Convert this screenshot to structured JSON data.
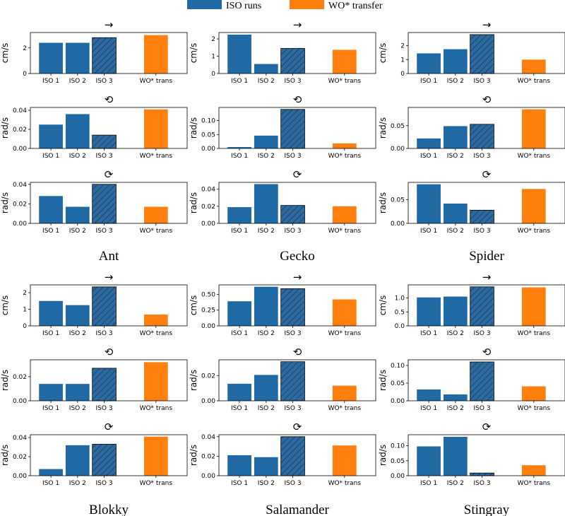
{
  "colors": {
    "iso": "#1f6aa5",
    "transfer": "#ff7f0e",
    "hatch_bg": "#2d6aa0"
  },
  "legend": [
    {
      "label": "ISO runs",
      "color": "#1f6aa5"
    },
    {
      "label": "WO* transfer",
      "color": "#ff7f0e"
    }
  ],
  "chart_data": {
    "type": "bar",
    "categories": [
      "ISO 1",
      "ISO 2",
      "ISO 3",
      "WO* trans"
    ],
    "metrics": [
      {
        "key": "forward",
        "symbol": "→",
        "ylabel": "cm/s"
      },
      {
        "key": "ccw",
        "symbol": "⟲",
        "ylabel": "rad/s"
      },
      {
        "key": "cw",
        "symbol": "⟳",
        "ylabel": "rad/s"
      }
    ],
    "robots": [
      {
        "name": "Ant",
        "panels": [
          {
            "symbol": "→",
            "ylabel": "cm/s",
            "values": [
              2.4,
              2.4,
              2.8,
              3.0
            ],
            "ylim": [
              0,
              3.2
            ],
            "ticks": [
              0,
              2
            ],
            "tick_labels": [
              "0",
              "2"
            ]
          },
          {
            "symbol": "⟲",
            "ylabel": "rad/s",
            "values": [
              0.025,
              0.036,
              0.014,
              0.041
            ],
            "ylim": [
              0,
              0.043
            ],
            "ticks": [
              0,
              0.02,
              0.04
            ],
            "tick_labels": [
              "0.00",
              "0.02",
              "0.04"
            ]
          },
          {
            "symbol": "⟳",
            "ylabel": "rad/s",
            "values": [
              0.028,
              0.017,
              0.04,
              0.017
            ],
            "ylim": [
              0,
              0.042
            ],
            "ticks": [
              0,
              0.02,
              0.04
            ],
            "tick_labels": [
              "0.00",
              "0.02",
              "0.04"
            ]
          }
        ]
      },
      {
        "name": "Gecko",
        "panels": [
          {
            "symbol": "→",
            "ylabel": "cm/s",
            "values": [
              2.25,
              0.55,
              1.45,
              1.37
            ],
            "ylim": [
              0,
              2.37
            ],
            "ticks": [
              0,
              1,
              2
            ],
            "tick_labels": [
              "0",
              "1",
              "2"
            ]
          },
          {
            "symbol": "⟲",
            "ylabel": "rad/s",
            "values": [
              0.005,
              0.046,
              0.14,
              0.018
            ],
            "ylim": [
              0,
              0.147
            ],
            "ticks": [
              0,
              0.05,
              0.1
            ],
            "tick_labels": [
              "0.00",
              "0.05",
              "0.10"
            ]
          },
          {
            "symbol": "⟳",
            "ylabel": "rad/s",
            "values": [
              0.019,
              0.046,
              0.021,
              0.02
            ],
            "ylim": [
              0,
              0.048
            ],
            "ticks": [
              0,
              0.02,
              0.04
            ],
            "tick_labels": [
              "0.00",
              "0.02",
              "0.04"
            ]
          }
        ]
      },
      {
        "name": "Spider",
        "panels": [
          {
            "symbol": "→",
            "ylabel": "cm/s",
            "values": [
              1.45,
              1.75,
              2.8,
              1.0
            ],
            "ylim": [
              0,
              2.95
            ],
            "ticks": [
              0,
              1,
              2
            ],
            "tick_labels": [
              "0",
              "1",
              "2"
            ]
          },
          {
            "symbol": "⟲",
            "ylabel": "rad/s",
            "values": [
              0.022,
              0.049,
              0.053,
              0.086
            ],
            "ylim": [
              0,
              0.09
            ],
            "ticks": [
              0,
              0.05
            ],
            "tick_labels": [
              "0.00",
              "0.05"
            ]
          },
          {
            "symbol": "⟳",
            "ylabel": "rad/s",
            "values": [
              0.083,
              0.042,
              0.028,
              0.073
            ],
            "ylim": [
              0,
              0.087
            ],
            "ticks": [
              0,
              0.05
            ],
            "tick_labels": [
              "0.00",
              "0.05"
            ]
          }
        ]
      },
      {
        "name": "Blokky",
        "panels": [
          {
            "symbol": "→",
            "ylabel": "cm/s",
            "values": [
              1.5,
              1.25,
              2.35,
              0.68
            ],
            "ylim": [
              0,
              2.47
            ],
            "ticks": [
              0,
              1,
              2
            ],
            "tick_labels": [
              "0",
              "1",
              "2"
            ]
          },
          {
            "symbol": "⟲",
            "ylabel": "rad/s",
            "values": [
              0.014,
              0.014,
              0.027,
              0.032
            ],
            "ylim": [
              0,
              0.034
            ],
            "ticks": [
              0,
              0.02
            ],
            "tick_labels": [
              "0.00",
              "0.02"
            ]
          },
          {
            "symbol": "⟳",
            "ylabel": "rad/s",
            "values": [
              0.007,
              0.032,
              0.033,
              0.041
            ],
            "ylim": [
              0,
              0.043
            ],
            "ticks": [
              0,
              0.02,
              0.04
            ],
            "tick_labels": [
              "0.00",
              "0.02",
              "0.04"
            ]
          }
        ]
      },
      {
        "name": "Salamander",
        "panels": [
          {
            "symbol": "→",
            "ylabel": "cm/s",
            "values": [
              0.39,
              0.62,
              0.59,
              0.42
            ],
            "ylim": [
              0,
              0.65
            ],
            "ticks": [
              0,
              0.25,
              0.5
            ],
            "tick_labels": [
              "0.00",
              "0.25",
              "0.50"
            ]
          },
          {
            "symbol": "⟲",
            "ylabel": "rad/s",
            "values": [
              0.0135,
              0.0205,
              0.031,
              0.012
            ],
            "ylim": [
              0,
              0.0325
            ],
            "ticks": [
              0,
              0.02
            ],
            "tick_labels": [
              "0.00",
              "0.02"
            ]
          },
          {
            "symbol": "⟳",
            "ylabel": "rad/s",
            "values": [
              0.021,
              0.019,
              0.04,
              0.031
            ],
            "ylim": [
              0,
              0.042
            ],
            "ticks": [
              0,
              0.02,
              0.04
            ],
            "tick_labels": [
              "0.00",
              "0.02",
              "0.04"
            ]
          }
        ]
      },
      {
        "name": "Stingray",
        "panels": [
          {
            "symbol": "→",
            "ylabel": "cm/s",
            "values": [
              1.02,
              1.05,
              1.4,
              1.38
            ],
            "ylim": [
              0,
              1.47
            ],
            "ticks": [
              0,
              0.5,
              1.0
            ],
            "tick_labels": [
              "0.0",
              "0.5",
              "1.0"
            ]
          },
          {
            "symbol": "⟲",
            "ylabel": "rad/s",
            "values": [
              0.032,
              0.018,
              0.11,
              0.041
            ],
            "ylim": [
              0,
              0.116
            ],
            "ticks": [
              0,
              0.05,
              0.1
            ],
            "tick_labels": [
              "0.00",
              "0.05",
              "0.10"
            ]
          },
          {
            "symbol": "⟳",
            "ylabel": "rad/s",
            "values": [
              0.098,
              0.13,
              0.009,
              0.035
            ],
            "ylim": [
              0,
              0.137
            ],
            "ticks": [
              0,
              0.05,
              0.1
            ],
            "tick_labels": [
              "0.00",
              "0.05",
              "0.10"
            ]
          }
        ]
      }
    ]
  }
}
